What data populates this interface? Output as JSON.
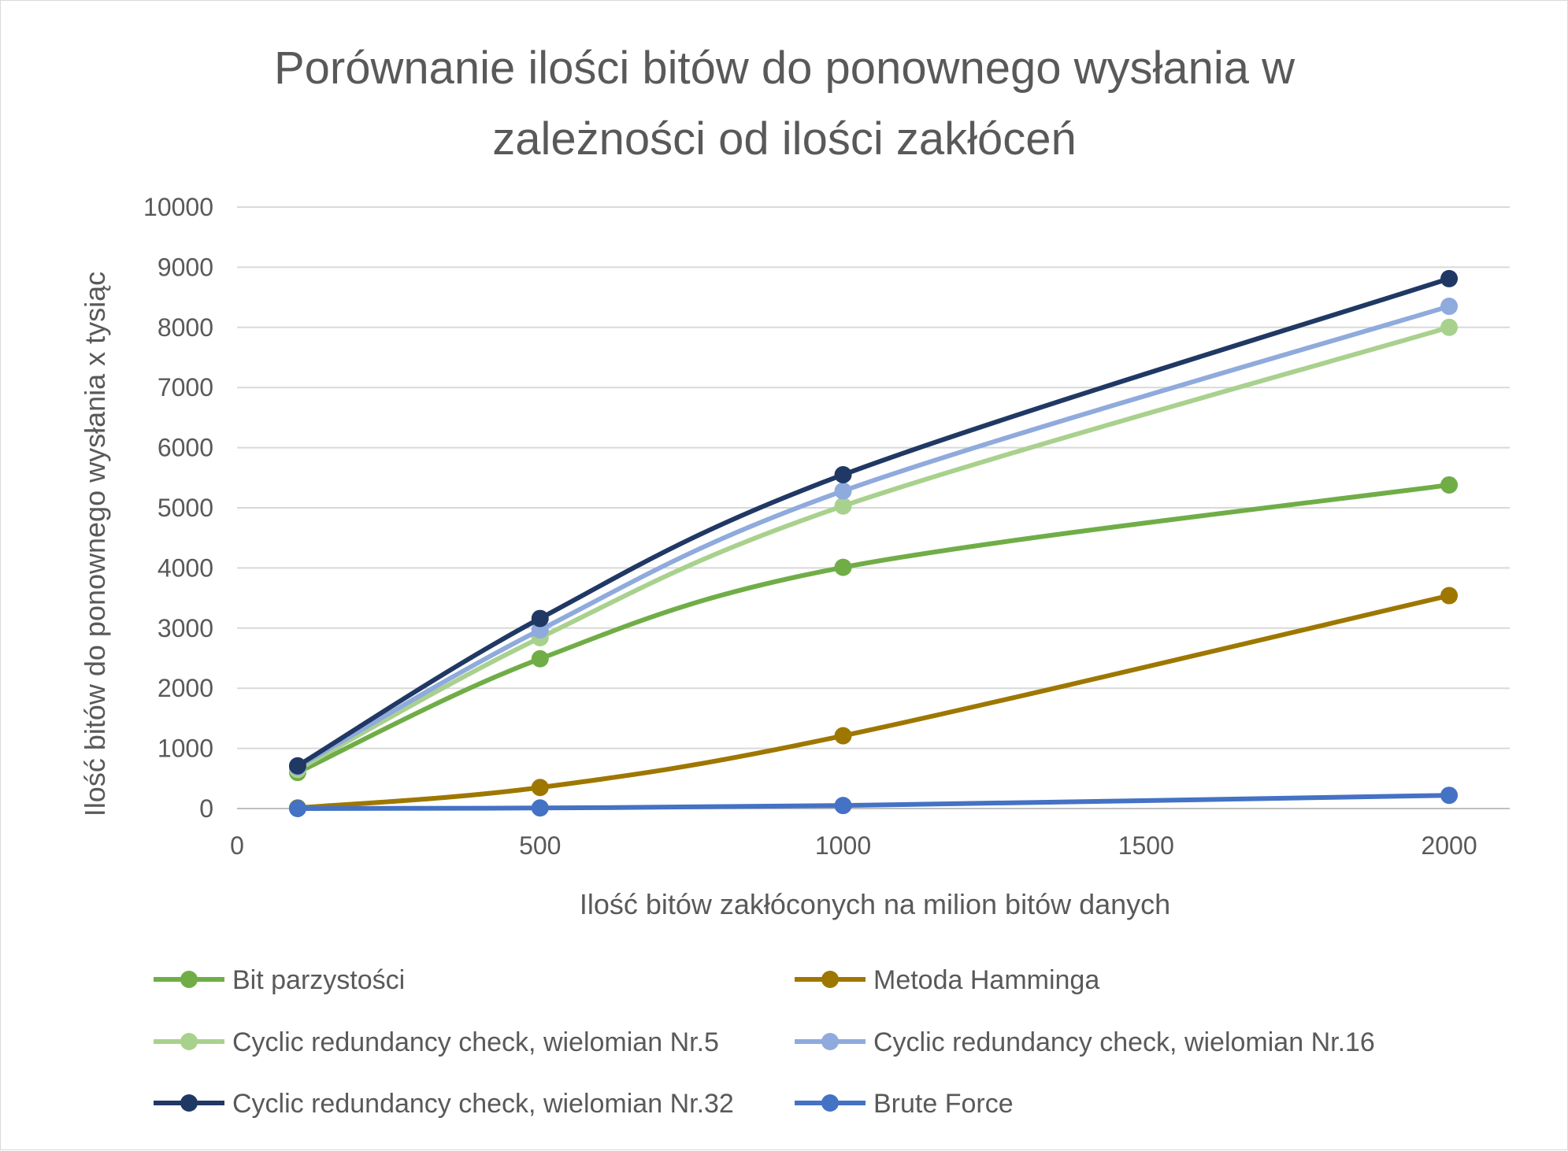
{
  "chart_data": {
    "type": "line",
    "title_lines": [
      "Porównanie ilości bitów do ponownego wysłania w",
      "zależności od ilości zakłóceń"
    ],
    "xlabel": "Ilość bitów zakłóconych na milion bitów danych",
    "ylabel": "Ilość bitów do ponownego wysłania x tysiąc",
    "xlim": [
      0,
      2100
    ],
    "ylim": [
      0,
      10000
    ],
    "x_ticks": [
      0,
      500,
      1000,
      1500,
      2000
    ],
    "y_ticks": [
      0,
      1000,
      2000,
      3000,
      4000,
      5000,
      6000,
      7000,
      8000,
      9000,
      10000
    ],
    "x_tick_labels": [
      "0",
      "500",
      "1000",
      "1500",
      "2000"
    ],
    "y_tick_labels": [
      "0",
      "1000",
      "2000",
      "3000",
      "4000",
      "5000",
      "6000",
      "7000",
      "8000",
      "9000",
      "10000"
    ],
    "grid": "horizontal",
    "legend_position": "bottom",
    "x": [
      100,
      500,
      1000,
      2000
    ],
    "series": [
      {
        "name": "Bit parzystości",
        "color": "#70ad47",
        "values": [
          600,
          2490,
          4010,
          5380
        ]
      },
      {
        "name": "Metoda Hamminga",
        "color": "#9e7700",
        "values": [
          10,
          350,
          1210,
          3540
        ]
      },
      {
        "name": "Cyclic redundancy check, wielomian Nr.5",
        "color": "#a9d18e",
        "values": [
          650,
          2840,
          5030,
          8000
        ]
      },
      {
        "name": "Cyclic redundancy check, wielomian Nr.16",
        "color": "#8faadc",
        "values": [
          690,
          2970,
          5280,
          8350
        ]
      },
      {
        "name": "Cyclic redundancy check, wielomian Nr.32",
        "color": "#203864",
        "values": [
          710,
          3160,
          5550,
          8810
        ]
      },
      {
        "name": "Brute Force",
        "color": "#4472c4",
        "values": [
          0,
          10,
          50,
          220
        ]
      }
    ]
  }
}
